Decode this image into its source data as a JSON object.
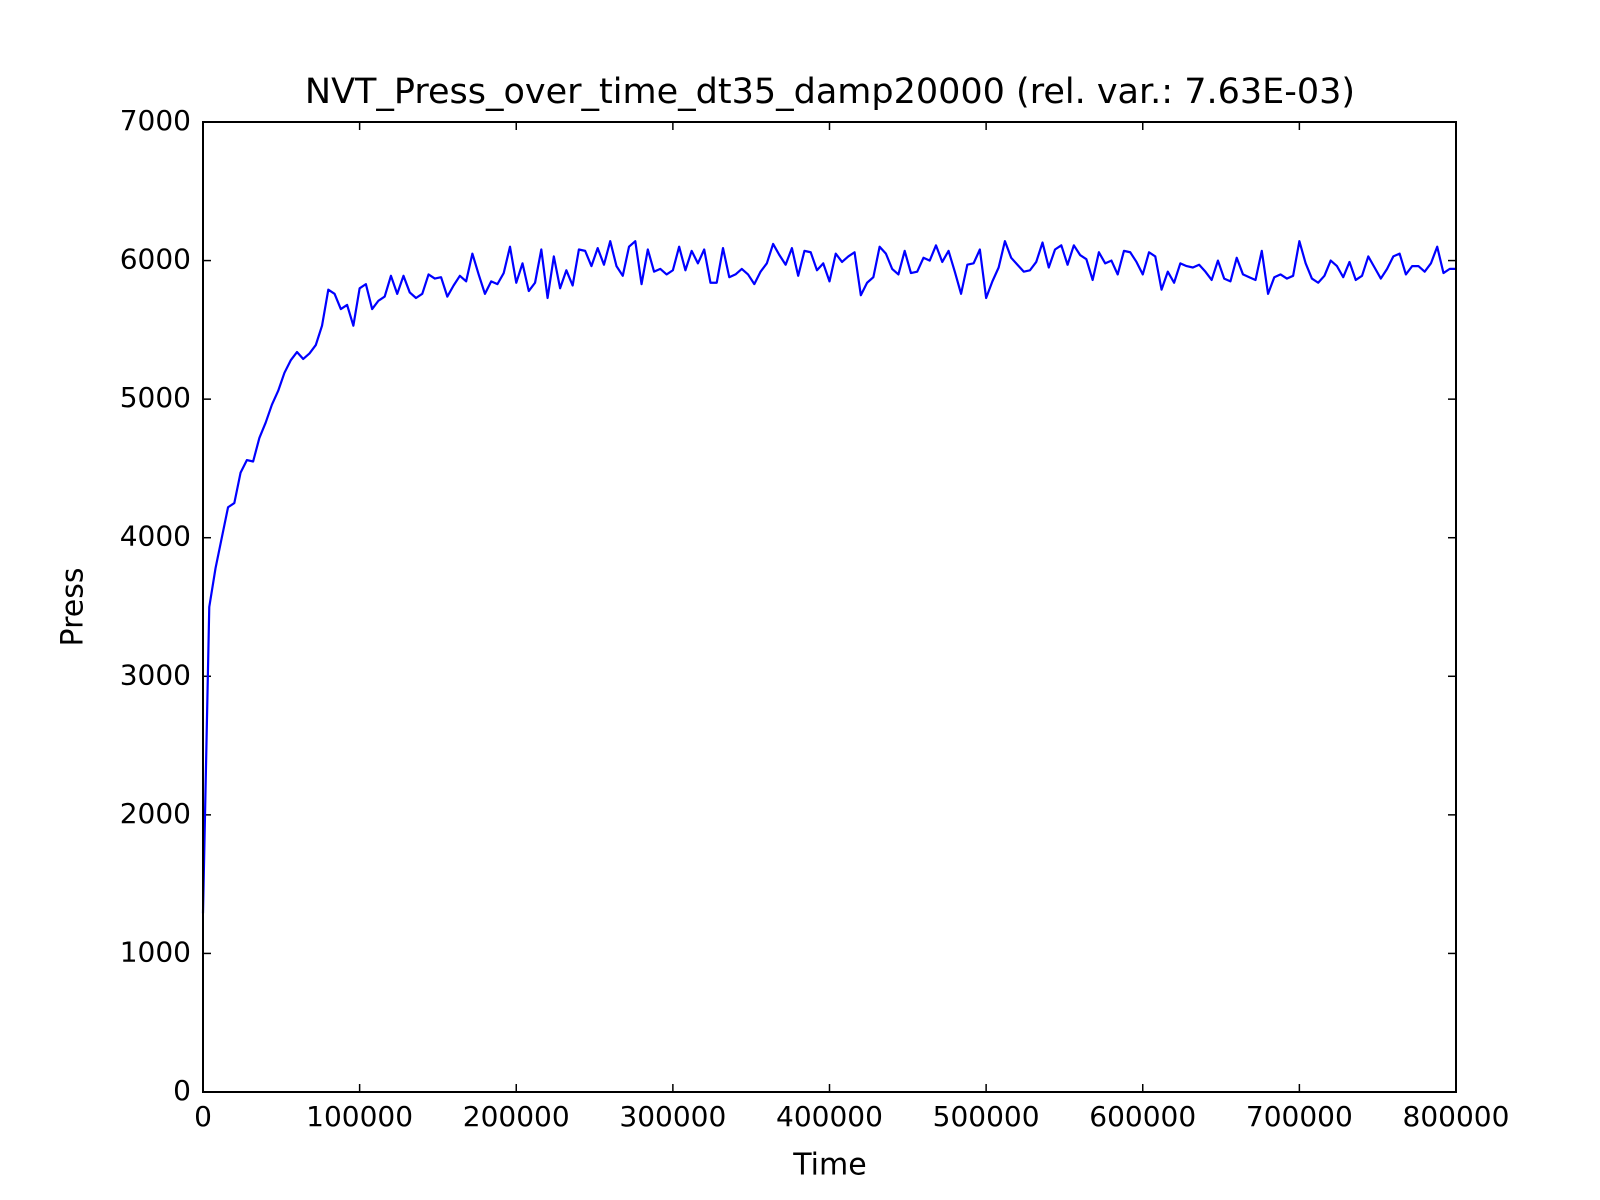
{
  "chart_data": {
    "type": "line",
    "title": "NVT_Press_over_time_dt35_damp20000 (rel. var.: 7.63E-03)",
    "x_label": "Time",
    "y_label": "Press",
    "color": "#0000ff",
    "xlim": [
      0,
      800000
    ],
    "xticks": [
      0,
      100000,
      200000,
      300000,
      400000,
      500000,
      600000,
      700000,
      800000
    ],
    "ylim": [
      0,
      7000
    ],
    "yticks": [
      0,
      1000,
      2000,
      3000,
      4000,
      5000,
      6000,
      7000
    ],
    "x": [
      0,
      4000,
      8000,
      12000,
      16000,
      20000,
      24000,
      28000,
      32000,
      36000,
      40000,
      44000,
      48000,
      52000,
      56000,
      60000,
      64000,
      68000,
      72000,
      76000,
      80000,
      84000,
      88000,
      92000,
      96000,
      100000,
      104000,
      108000,
      112000,
      116000,
      120000,
      124000,
      128000,
      132000,
      136000,
      140000,
      144000,
      148000,
      152000,
      156000,
      160000,
      164000,
      168000,
      172000,
      176000,
      180000,
      184000,
      188000,
      192000,
      196000,
      200000,
      204000,
      208000,
      212000,
      216000,
      220000,
      224000,
      228000,
      232000,
      236000,
      240000,
      244000,
      248000,
      252000,
      256000,
      260000,
      264000,
      268000,
      272000,
      276000,
      280000,
      284000,
      288000,
      292000,
      296000,
      300000,
      304000,
      308000,
      312000,
      316000,
      320000,
      324000,
      328000,
      332000,
      336000,
      340000,
      344000,
      348000,
      352000,
      356000,
      360000,
      364000,
      368000,
      372000,
      376000,
      380000,
      384000,
      388000,
      392000,
      396000,
      400000,
      404000,
      408000,
      412000,
      416000,
      420000,
      424000,
      428000,
      432000,
      436000,
      440000,
      444000,
      448000,
      452000,
      456000,
      460000,
      464000,
      468000,
      472000,
      476000,
      480000,
      484000,
      488000,
      492000,
      496000,
      500000,
      504000,
      508000,
      512000,
      516000,
      520000,
      524000,
      528000,
      532000,
      536000,
      540000,
      544000,
      548000,
      552000,
      556000,
      560000,
      564000,
      568000,
      572000,
      576000,
      580000,
      584000,
      588000,
      592000,
      596000,
      600000,
      604000,
      608000,
      612000,
      616000,
      620000,
      624000,
      628000,
      632000,
      636000,
      640000,
      644000,
      648000,
      652000,
      656000,
      660000,
      664000,
      668000,
      672000,
      676000,
      680000,
      684000,
      688000,
      692000,
      696000,
      700000,
      704000,
      708000,
      712000,
      716000,
      720000,
      724000,
      728000,
      732000,
      736000,
      740000,
      744000,
      748000,
      752000,
      756000,
      760000,
      764000,
      768000,
      772000,
      776000,
      780000,
      784000,
      788000,
      792000,
      796000,
      800000
    ],
    "values": [
      1290,
      3500,
      3780,
      4000,
      4220,
      4250,
      4470,
      4560,
      4550,
      4720,
      4830,
      4960,
      5060,
      5190,
      5280,
      5340,
      5290,
      5330,
      5390,
      5530,
      5790,
      5760,
      5650,
      5680,
      5530,
      5800,
      5830,
      5650,
      5710,
      5740,
      5890,
      5760,
      5890,
      5770,
      5730,
      5760,
      5900,
      5870,
      5880,
      5740,
      5820,
      5890,
      5850,
      6050,
      5900,
      5760,
      5850,
      5830,
      5910,
      6100,
      5840,
      5980,
      5780,
      5840,
      6080,
      5730,
      6030,
      5800,
      5930,
      5820,
      6080,
      6070,
      5960,
      6090,
      5970,
      6140,
      5960,
      5890,
      6100,
      6140,
      5830,
      6080,
      5920,
      5940,
      5900,
      5930,
      6100,
      5930,
      6070,
      5980,
      6080,
      5840,
      5840,
      6090,
      5880,
      5900,
      5940,
      5900,
      5830,
      5920,
      5980,
      6120,
      6040,
      5970,
      6090,
      5890,
      6070,
      6060,
      5930,
      5980,
      5850,
      6050,
      5990,
      6030,
      6060,
      5750,
      5840,
      5880,
      6100,
      6050,
      5940,
      5900,
      6070,
      5910,
      5920,
      6020,
      6000,
      6110,
      5990,
      6070,
      5920,
      5760,
      5970,
      5980,
      6080,
      5730,
      5850,
      5950,
      6140,
      6020,
      5970,
      5920,
      5930,
      5990,
      6130,
      5950,
      6080,
      6110,
      5970,
      6110,
      6040,
      6010,
      5860,
      6060,
      5980,
      6000,
      5900,
      6070,
      6060,
      5990,
      5900,
      6060,
      6030,
      5790,
      5920,
      5840,
      5980,
      5960,
      5950,
      5970,
      5920,
      5860,
      6000,
      5870,
      5850,
      6020,
      5900,
      5880,
      5860,
      6070,
      5760,
      5880,
      5900,
      5870,
      5890,
      6140,
      5980,
      5870,
      5840,
      5890,
      6000,
      5960,
      5880,
      5990,
      5860,
      5890,
      6030,
      5950,
      5870,
      5940,
      6030,
      6050,
      5900,
      5960,
      5960,
      5920,
      5980,
      6100,
      5910,
      5940,
      5940
    ]
  }
}
